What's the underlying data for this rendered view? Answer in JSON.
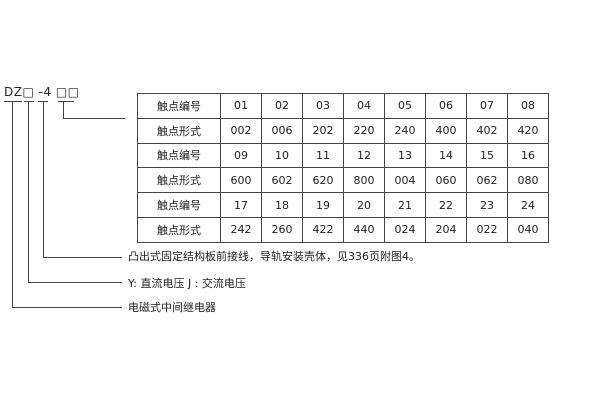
{
  "model_code": "DZ□ -4 □□",
  "table": {
    "rows": [
      {
        "label": "触点编号",
        "cells": [
          "01",
          "02",
          "03",
          "04",
          "05",
          "06",
          "07",
          "08"
        ]
      },
      {
        "label": "触点形式",
        "cells": [
          "002",
          "006",
          "202",
          "220",
          "240",
          "400",
          "402",
          "420"
        ]
      },
      {
        "label": "触点编号",
        "cells": [
          "09",
          "10",
          "11",
          "12",
          "13",
          "14",
          "15",
          "16"
        ]
      },
      {
        "label": "触点形式",
        "cells": [
          "600",
          "602",
          "620",
          "800",
          "004",
          "060",
          "062",
          "080"
        ]
      },
      {
        "label": "触点编号",
        "cells": [
          "17",
          "18",
          "19",
          "20",
          "21",
          "22",
          "23",
          "24"
        ]
      },
      {
        "label": "触点形式",
        "cells": [
          "242",
          "260",
          "422",
          "440",
          "024",
          "204",
          "022",
          "040"
        ]
      }
    ]
  },
  "descriptions": [
    "凸出式固定结构板前接线，导轨安装壳体，见336页附图4。",
    "Y: 直流电压   J : 交流电压",
    "电磁式中间继电器"
  ]
}
